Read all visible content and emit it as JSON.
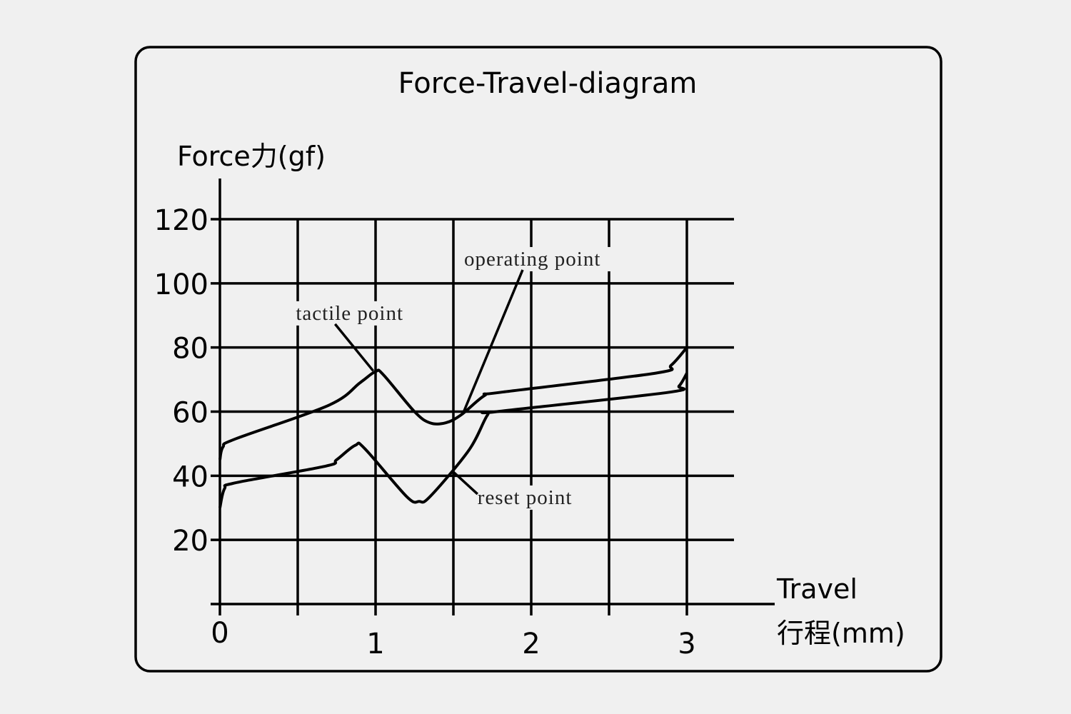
{
  "chart_data": {
    "type": "line",
    "title": "Force-Travel-diagram",
    "ylabel": "Force力(gf)",
    "xlabel_line1": "Travel",
    "xlabel_line2": "行程(mm)",
    "xlim": [
      0,
      3
    ],
    "ylim": [
      0,
      120
    ],
    "x_ticks": [
      "0",
      "1",
      "2",
      "3"
    ],
    "y_ticks": [
      "20",
      "40",
      "60",
      "80",
      "100",
      "120"
    ],
    "grid": true,
    "series": [
      {
        "points": [
          [
            0,
            45
          ],
          [
            0.02,
            49
          ],
          [
            0.1,
            51.5
          ],
          [
            0.7,
            62
          ],
          [
            0.9,
            69
          ],
          [
            1.0,
            72.5
          ],
          [
            1.05,
            71.5
          ],
          [
            1.25,
            60
          ],
          [
            1.35,
            56.5
          ],
          [
            1.45,
            56.5
          ],
          [
            1.55,
            59
          ],
          [
            1.7,
            65
          ],
          [
            1.8,
            66
          ],
          [
            2.8,
            72
          ],
          [
            2.9,
            74.5
          ],
          [
            3.0,
            80
          ]
        ]
      },
      {
        "points": [
          [
            0,
            30
          ],
          [
            0.03,
            36
          ],
          [
            0.1,
            37.8
          ],
          [
            0.68,
            43
          ],
          [
            0.75,
            45
          ],
          [
            0.87,
            49.5
          ],
          [
            0.93,
            48.5
          ],
          [
            1.2,
            33.5
          ],
          [
            1.28,
            32
          ],
          [
            1.35,
            33.5
          ],
          [
            1.6,
            48
          ],
          [
            1.72,
            59
          ],
          [
            1.78,
            60
          ],
          [
            2.88,
            66
          ],
          [
            2.95,
            68
          ],
          [
            3.0,
            72
          ]
        ]
      }
    ],
    "annotations": [
      {
        "text": "tactile point",
        "from": [
          0.74,
          87.3
        ],
        "to": [
          0.985,
          72.7
        ]
      },
      {
        "text": "operating point",
        "from": [
          1.945,
          104.2
        ],
        "to": [
          1.56,
          59.2
        ]
      },
      {
        "text": "reset point",
        "from": [
          1.655,
          34.3
        ],
        "to": [
          1.495,
          41.4
        ]
      }
    ],
    "line_color": "#000000",
    "background_color": "#f0f0f0"
  }
}
